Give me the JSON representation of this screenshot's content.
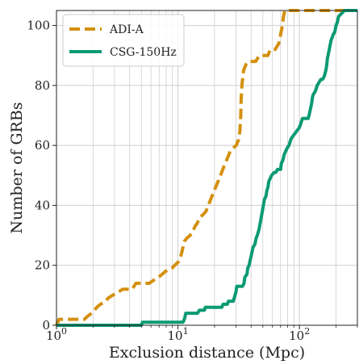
{
  "chart_data": {
    "type": "line",
    "title": "",
    "xlabel": "Exclusion distance (Mpc)",
    "ylabel": "Number of GRBs",
    "xscale": "log",
    "xlim": [
      1,
      300
    ],
    "ylim": [
      0,
      105
    ],
    "grid": true,
    "legend_position": "top-left",
    "x_ticks": [
      {
        "value": 1,
        "base": "10",
        "exp": "0"
      },
      {
        "value": 10,
        "base": "10",
        "exp": "1"
      },
      {
        "value": 100,
        "base": "10",
        "exp": "2"
      }
    ],
    "y_ticks": [
      {
        "value": 0,
        "label": "0"
      },
      {
        "value": 20,
        "label": "20"
      },
      {
        "value": 40,
        "label": "40"
      },
      {
        "value": 60,
        "label": "60"
      },
      {
        "value": 80,
        "label": "80"
      },
      {
        "value": 100,
        "label": "100"
      }
    ],
    "series": [
      {
        "name": "ADI-A",
        "color": "#d4900f",
        "dash": true,
        "points": [
          [
            1.0,
            0
          ],
          [
            1.05,
            2
          ],
          [
            1.7,
            2
          ],
          [
            1.8,
            3
          ],
          [
            1.95,
            4
          ],
          [
            2.05,
            5
          ],
          [
            2.15,
            6
          ],
          [
            2.3,
            7
          ],
          [
            2.55,
            8
          ],
          [
            2.65,
            9
          ],
          [
            2.9,
            10
          ],
          [
            3.2,
            11
          ],
          [
            3.5,
            12
          ],
          [
            4.2,
            12
          ],
          [
            4.5,
            14
          ],
          [
            5.8,
            14
          ],
          [
            6.3,
            15
          ],
          [
            6.9,
            16
          ],
          [
            7.4,
            17
          ],
          [
            7.9,
            18
          ],
          [
            8.9,
            19
          ],
          [
            9.4,
            20
          ],
          [
            10.0,
            21
          ],
          [
            10.4,
            22
          ],
          [
            10.7,
            24
          ],
          [
            11.0,
            26
          ],
          [
            11.3,
            28
          ],
          [
            11.8,
            29
          ],
          [
            12.6,
            30
          ],
          [
            13.2,
            31
          ],
          [
            13.8,
            33
          ],
          [
            14.4,
            34
          ],
          [
            15.1,
            36
          ],
          [
            16.2,
            37
          ],
          [
            17.0,
            38
          ],
          [
            17.8,
            40
          ],
          [
            18.6,
            42
          ],
          [
            19.5,
            44
          ],
          [
            20.4,
            46
          ],
          [
            21.4,
            48
          ],
          [
            22.4,
            50
          ],
          [
            23.4,
            52
          ],
          [
            24.5,
            54
          ],
          [
            25.7,
            56
          ],
          [
            26.9,
            58
          ],
          [
            28.2,
            59
          ],
          [
            30.2,
            60
          ],
          [
            31.6,
            62
          ],
          [
            32.4,
            65
          ],
          [
            32.9,
            70
          ],
          [
            33.1,
            75
          ],
          [
            33.6,
            80
          ],
          [
            34.7,
            85
          ],
          [
            36.3,
            87
          ],
          [
            38.0,
            88
          ],
          [
            43.7,
            88
          ],
          [
            46.8,
            90
          ],
          [
            55.0,
            90
          ],
          [
            57.5,
            92
          ],
          [
            63.1,
            92
          ],
          [
            67.6,
            94
          ],
          [
            69.2,
            96
          ],
          [
            70.8,
            98
          ],
          [
            72.4,
            100
          ],
          [
            73.9,
            103
          ],
          [
            75.9,
            105
          ],
          [
            300,
            105
          ]
        ]
      },
      {
        "name": "CSG-150Hz",
        "color": "#0b9a73",
        "dash": false,
        "points": [
          [
            1.0,
            0
          ],
          [
            5.0,
            0
          ],
          [
            5.1,
            1
          ],
          [
            11.0,
            1
          ],
          [
            11.3,
            2
          ],
          [
            11.6,
            4
          ],
          [
            14.5,
            4
          ],
          [
            15.0,
            5
          ],
          [
            16.5,
            5
          ],
          [
            16.8,
            6
          ],
          [
            23.0,
            6
          ],
          [
            23.5,
            7
          ],
          [
            25.5,
            7
          ],
          [
            26.0,
            8
          ],
          [
            28.5,
            8
          ],
          [
            29.5,
            10
          ],
          [
            30.0,
            11
          ],
          [
            30.5,
            13
          ],
          [
            34.0,
            13
          ],
          [
            35.0,
            14
          ],
          [
            35.5,
            16
          ],
          [
            37.0,
            17
          ],
          [
            37.5,
            19
          ],
          [
            38.5,
            20
          ],
          [
            39.5,
            22
          ],
          [
            40.5,
            24
          ],
          [
            41.5,
            26
          ],
          [
            43.0,
            27
          ],
          [
            44.0,
            29
          ],
          [
            45.0,
            30
          ],
          [
            46.5,
            32
          ],
          [
            47.5,
            34
          ],
          [
            48.5,
            36
          ],
          [
            49.5,
            38
          ],
          [
            50.5,
            40
          ],
          [
            51.5,
            42
          ],
          [
            53.0,
            43
          ],
          [
            54.0,
            45
          ],
          [
            55.0,
            46
          ],
          [
            56.0,
            48
          ],
          [
            57.5,
            49
          ],
          [
            59.0,
            50
          ],
          [
            62.0,
            51
          ],
          [
            64.0,
            51
          ],
          [
            66.0,
            52
          ],
          [
            70.0,
            52
          ],
          [
            71.0,
            54
          ],
          [
            73.0,
            55
          ],
          [
            75.0,
            57
          ],
          [
            77.0,
            58
          ],
          [
            79.0,
            59
          ],
          [
            82.0,
            60
          ],
          [
            85.0,
            62
          ],
          [
            88.0,
            63
          ],
          [
            92.0,
            64
          ],
          [
            96.0,
            65
          ],
          [
            100.0,
            66
          ],
          [
            104.0,
            68
          ],
          [
            106.0,
            69
          ],
          [
            118.0,
            69
          ],
          [
            120.0,
            70
          ],
          [
            123.0,
            72
          ],
          [
            126.0,
            74
          ],
          [
            128.0,
            76
          ],
          [
            130.0,
            77
          ],
          [
            135.0,
            78
          ],
          [
            140.0,
            80
          ],
          [
            145.0,
            81
          ],
          [
            150.0,
            82
          ],
          [
            155.0,
            82
          ],
          [
            160.0,
            83
          ],
          [
            165.0,
            85
          ],
          [
            168.0,
            87
          ],
          [
            170.0,
            89
          ],
          [
            174.0,
            91
          ],
          [
            178.0,
            93
          ],
          [
            182.0,
            95
          ],
          [
            186.0,
            96
          ],
          [
            190.0,
            97
          ],
          [
            196.0,
            98
          ],
          [
            200.0,
            100
          ],
          [
            205.0,
            101
          ],
          [
            210.0,
            103
          ],
          [
            222.0,
            104
          ],
          [
            235.0,
            105
          ],
          [
            300,
            105
          ]
        ]
      }
    ]
  }
}
